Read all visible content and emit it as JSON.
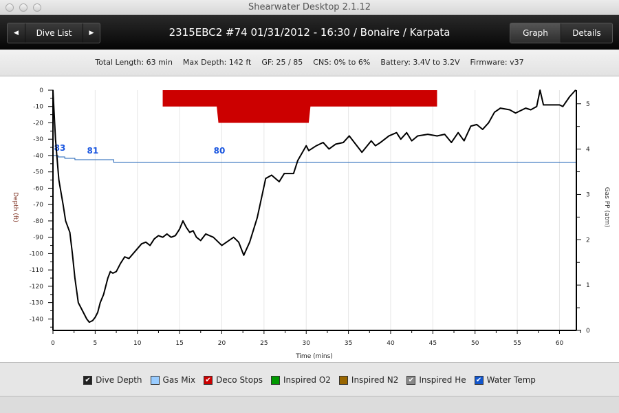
{
  "window": {
    "title": "Shearwater Desktop 2.1.12"
  },
  "toolbar": {
    "prev_icon": "◀",
    "dive_list_label": "Dive List",
    "next_icon": "▶",
    "title": "2315EBC2 #74 01/31/2012 - 16:30  / Bonaire / Karpata",
    "graph_label": "Graph",
    "details_label": "Details"
  },
  "info": {
    "total_length": "Total Length: 63 min",
    "max_depth": "Max Depth: 142 ft",
    "gf": "GF: 25 / 85",
    "cns": "CNS: 0% to 6%",
    "battery": "Battery: 3.4V to 3.2V",
    "firmware": "Firmware: v37"
  },
  "legend": [
    {
      "label": "Dive Depth",
      "color": "#222222",
      "checked": true
    },
    {
      "label": "Gas Mix",
      "color": "#99ccff",
      "checked": false
    },
    {
      "label": "Deco Stops",
      "color": "#cc0000",
      "checked": true
    },
    {
      "label": "Inspired O2",
      "color": "#009900",
      "checked": false
    },
    {
      "label": "Inspired N2",
      "color": "#996600",
      "checked": false
    },
    {
      "label": "Inspired He",
      "color": "#888888",
      "checked": true
    },
    {
      "label": "Water Temp",
      "color": "#1155cc",
      "checked": true
    }
  ],
  "chart_data": {
    "type": "line",
    "xlabel": "Time (mins)",
    "ylabel": "Depth (ft)",
    "y2label": "Gas PP (atm)",
    "xlim": [
      0,
      62
    ],
    "ylim": [
      -147,
      0
    ],
    "y2lim": [
      0,
      5.3
    ],
    "xticks": [
      0,
      5,
      10,
      15,
      20,
      25,
      30,
      35,
      40,
      45,
      50,
      55,
      60
    ],
    "yticks": [
      0,
      -10,
      -20,
      -30,
      -40,
      -50,
      -60,
      -70,
      -80,
      -90,
      -100,
      -110,
      -120,
      -130,
      -140
    ],
    "y2ticks": [
      0,
      1,
      2,
      3,
      4,
      5
    ],
    "colors": {
      "depth": "#000000",
      "deco": "#cc0000",
      "temp": "#1a5fb4",
      "temp_label": "#1a56e0"
    },
    "depth": [
      [
        0,
        0
      ],
      [
        0.3,
        -30
      ],
      [
        0.7,
        -55
      ],
      [
        1.2,
        -70
      ],
      [
        1.5,
        -80
      ],
      [
        2.0,
        -87
      ],
      [
        2.3,
        -100
      ],
      [
        2.6,
        -115
      ],
      [
        3.0,
        -130
      ],
      [
        3.5,
        -135
      ],
      [
        4.0,
        -140
      ],
      [
        4.3,
        -142
      ],
      [
        4.7,
        -141
      ],
      [
        5.0,
        -139
      ],
      [
        5.3,
        -136
      ],
      [
        5.6,
        -130
      ],
      [
        6.0,
        -125
      ],
      [
        6.5,
        -115
      ],
      [
        6.8,
        -111
      ],
      [
        7.1,
        -112
      ],
      [
        7.5,
        -111
      ],
      [
        8.0,
        -106
      ],
      [
        8.5,
        -102
      ],
      [
        9.0,
        -103
      ],
      [
        9.5,
        -100
      ],
      [
        10.0,
        -97
      ],
      [
        10.5,
        -94
      ],
      [
        11.0,
        -93
      ],
      [
        11.5,
        -95
      ],
      [
        12.0,
        -91
      ],
      [
        12.5,
        -89
      ],
      [
        13.0,
        -90
      ],
      [
        13.5,
        -88
      ],
      [
        14.0,
        -90
      ],
      [
        14.5,
        -89
      ],
      [
        15.0,
        -85
      ],
      [
        15.4,
        -80
      ],
      [
        15.8,
        -84
      ],
      [
        16.2,
        -87
      ],
      [
        16.6,
        -86
      ],
      [
        17.0,
        -90
      ],
      [
        17.5,
        -92
      ],
      [
        18.1,
        -88
      ],
      [
        19,
        -90
      ],
      [
        20.0,
        -95
      ],
      [
        21.4,
        -90
      ],
      [
        22.0,
        -93
      ],
      [
        22.6,
        -101
      ],
      [
        23.3,
        -93
      ],
      [
        24.2,
        -78
      ],
      [
        25.2,
        -54
      ],
      [
        25.9,
        -52
      ],
      [
        26.8,
        -56
      ],
      [
        27.4,
        -51
      ],
      [
        28.5,
        -51
      ],
      [
        29.0,
        -43
      ],
      [
        30.0,
        -34
      ],
      [
        30.3,
        -37
      ],
      [
        31.2,
        -34
      ],
      [
        32.0,
        -32
      ],
      [
        32.7,
        -36
      ],
      [
        33.5,
        -33
      ],
      [
        34.4,
        -32
      ],
      [
        35.1,
        -28
      ],
      [
        36.6,
        -38
      ],
      [
        37.7,
        -31
      ],
      [
        38.2,
        -34
      ],
      [
        38.8,
        -32
      ],
      [
        39.8,
        -28
      ],
      [
        40.7,
        -26
      ],
      [
        41.2,
        -30
      ],
      [
        41.9,
        -26
      ],
      [
        42.5,
        -31
      ],
      [
        43.2,
        -28
      ],
      [
        44.4,
        -27
      ],
      [
        45.5,
        -28
      ],
      [
        46.4,
        -27
      ],
      [
        47.2,
        -32
      ],
      [
        48.0,
        -26
      ],
      [
        48.7,
        -31
      ],
      [
        49.5,
        -22
      ],
      [
        50.2,
        -21
      ],
      [
        50.9,
        -24
      ],
      [
        51.6,
        -20
      ],
      [
        52.3,
        -13.5
      ],
      [
        53.0,
        -11
      ],
      [
        54.1,
        -12
      ],
      [
        54.8,
        -14
      ],
      [
        56.0,
        -11
      ],
      [
        56.6,
        -12
      ],
      [
        57.3,
        -10
      ],
      [
        57.7,
        0
      ],
      [
        58.1,
        -9
      ],
      [
        58.9,
        -9
      ],
      [
        60.0,
        -9
      ],
      [
        60.4,
        -10
      ],
      [
        61.2,
        -4
      ],
      [
        61.9,
        0
      ]
    ],
    "deco_ceiling": [
      [
        13.0,
        -10
      ],
      [
        19.4,
        -10
      ],
      [
        19.6,
        -20
      ],
      [
        30.3,
        -20
      ],
      [
        30.5,
        -10
      ],
      [
        45.5,
        -10
      ]
    ],
    "water_temp": [
      [
        0,
        83
      ],
      [
        0.6,
        82.5
      ],
      [
        1.4,
        82
      ],
      [
        2.6,
        81.5
      ],
      [
        7.2,
        80.5
      ],
      [
        62,
        80.5
      ]
    ],
    "temp_labels": [
      {
        "t": 0.3,
        "text": "83"
      },
      {
        "t": 4.2,
        "text": "81"
      },
      {
        "t": 19.2,
        "text": "80"
      }
    ]
  }
}
